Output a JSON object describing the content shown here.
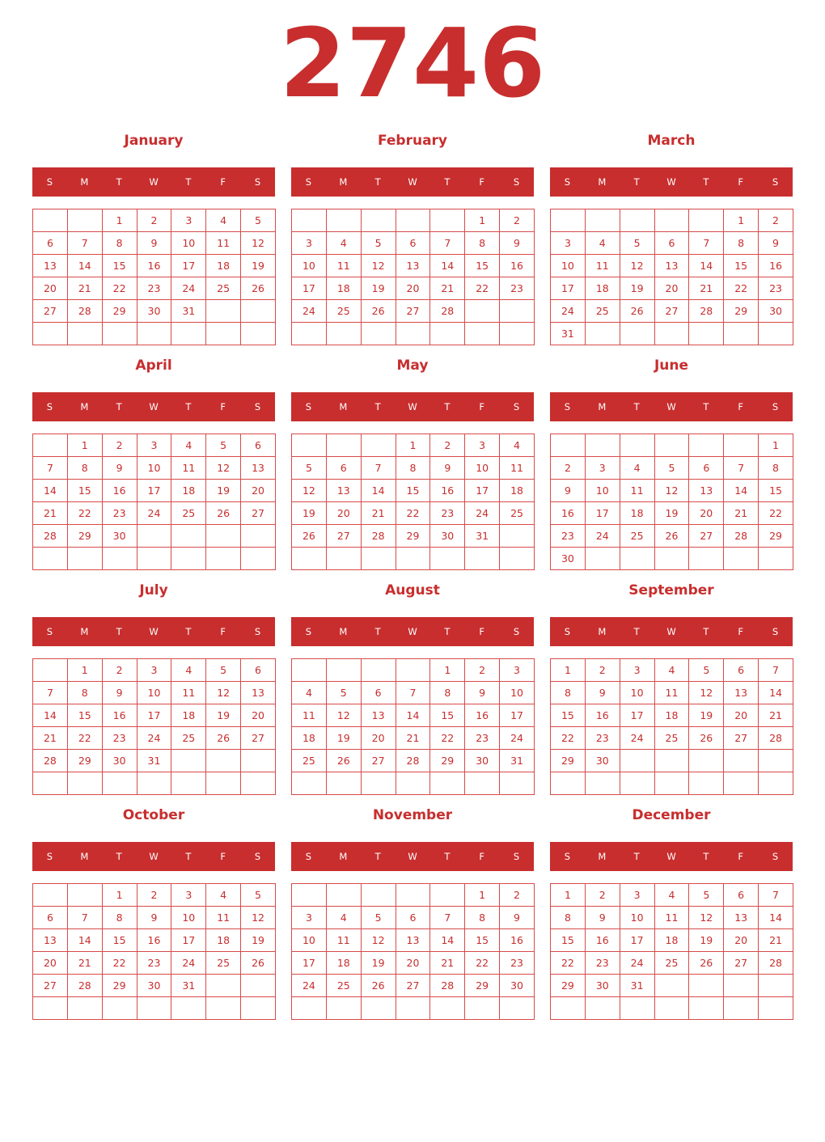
{
  "year": "2746",
  "accent_color": "#c82e2e",
  "weekday_labels": [
    "S",
    "M",
    "T",
    "W",
    "T",
    "F",
    "S"
  ],
  "months": [
    {
      "name": "January",
      "weeks": [
        [
          "",
          "",
          "1",
          "2",
          "3",
          "4",
          "5"
        ],
        [
          "6",
          "7",
          "8",
          "9",
          "10",
          "11",
          "12"
        ],
        [
          "13",
          "14",
          "15",
          "16",
          "17",
          "18",
          "19"
        ],
        [
          "20",
          "21",
          "22",
          "23",
          "24",
          "25",
          "26"
        ],
        [
          "27",
          "28",
          "29",
          "30",
          "31",
          "",
          ""
        ],
        [
          "",
          "",
          "",
          "",
          "",
          "",
          ""
        ]
      ]
    },
    {
      "name": "February",
      "weeks": [
        [
          "",
          "",
          "",
          "",
          "",
          "1",
          "2"
        ],
        [
          "3",
          "4",
          "5",
          "6",
          "7",
          "8",
          "9"
        ],
        [
          "10",
          "11",
          "12",
          "13",
          "14",
          "15",
          "16"
        ],
        [
          "17",
          "18",
          "19",
          "20",
          "21",
          "22",
          "23"
        ],
        [
          "24",
          "25",
          "26",
          "27",
          "28",
          "",
          ""
        ],
        [
          "",
          "",
          "",
          "",
          "",
          "",
          ""
        ]
      ]
    },
    {
      "name": "March",
      "weeks": [
        [
          "",
          "",
          "",
          "",
          "",
          "1",
          "2"
        ],
        [
          "3",
          "4",
          "5",
          "6",
          "7",
          "8",
          "9"
        ],
        [
          "10",
          "11",
          "12",
          "13",
          "14",
          "15",
          "16"
        ],
        [
          "17",
          "18",
          "19",
          "20",
          "21",
          "22",
          "23"
        ],
        [
          "24",
          "25",
          "26",
          "27",
          "28",
          "29",
          "30"
        ],
        [
          "31",
          "",
          "",
          "",
          "",
          "",
          ""
        ]
      ]
    },
    {
      "name": "April",
      "weeks": [
        [
          "",
          "1",
          "2",
          "3",
          "4",
          "5",
          "6"
        ],
        [
          "7",
          "8",
          "9",
          "10",
          "11",
          "12",
          "13"
        ],
        [
          "14",
          "15",
          "16",
          "17",
          "18",
          "19",
          "20"
        ],
        [
          "21",
          "22",
          "23",
          "24",
          "25",
          "26",
          "27"
        ],
        [
          "28",
          "29",
          "30",
          "",
          "",
          "",
          ""
        ],
        [
          "",
          "",
          "",
          "",
          "",
          "",
          ""
        ]
      ]
    },
    {
      "name": "May",
      "weeks": [
        [
          "",
          "",
          "",
          "1",
          "2",
          "3",
          "4"
        ],
        [
          "5",
          "6",
          "7",
          "8",
          "9",
          "10",
          "11"
        ],
        [
          "12",
          "13",
          "14",
          "15",
          "16",
          "17",
          "18"
        ],
        [
          "19",
          "20",
          "21",
          "22",
          "23",
          "24",
          "25"
        ],
        [
          "26",
          "27",
          "28",
          "29",
          "30",
          "31",
          ""
        ],
        [
          "",
          "",
          "",
          "",
          "",
          "",
          ""
        ]
      ]
    },
    {
      "name": "June",
      "weeks": [
        [
          "",
          "",
          "",
          "",
          "",
          "",
          "1"
        ],
        [
          "2",
          "3",
          "4",
          "5",
          "6",
          "7",
          "8"
        ],
        [
          "9",
          "10",
          "11",
          "12",
          "13",
          "14",
          "15"
        ],
        [
          "16",
          "17",
          "18",
          "19",
          "20",
          "21",
          "22"
        ],
        [
          "23",
          "24",
          "25",
          "26",
          "27",
          "28",
          "29"
        ],
        [
          "30",
          "",
          "",
          "",
          "",
          "",
          ""
        ]
      ]
    },
    {
      "name": "July",
      "weeks": [
        [
          "",
          "1",
          "2",
          "3",
          "4",
          "5",
          "6"
        ],
        [
          "7",
          "8",
          "9",
          "10",
          "11",
          "12",
          "13"
        ],
        [
          "14",
          "15",
          "16",
          "17",
          "18",
          "19",
          "20"
        ],
        [
          "21",
          "22",
          "23",
          "24",
          "25",
          "26",
          "27"
        ],
        [
          "28",
          "29",
          "30",
          "31",
          "",
          "",
          ""
        ],
        [
          "",
          "",
          "",
          "",
          "",
          "",
          ""
        ]
      ]
    },
    {
      "name": "August",
      "weeks": [
        [
          "",
          "",
          "",
          "",
          "1",
          "2",
          "3"
        ],
        [
          "4",
          "5",
          "6",
          "7",
          "8",
          "9",
          "10"
        ],
        [
          "11",
          "12",
          "13",
          "14",
          "15",
          "16",
          "17"
        ],
        [
          "18",
          "19",
          "20",
          "21",
          "22",
          "23",
          "24"
        ],
        [
          "25",
          "26",
          "27",
          "28",
          "29",
          "30",
          "31"
        ],
        [
          "",
          "",
          "",
          "",
          "",
          "",
          ""
        ]
      ]
    },
    {
      "name": "September",
      "weeks": [
        [
          "1",
          "2",
          "3",
          "4",
          "5",
          "6",
          "7"
        ],
        [
          "8",
          "9",
          "10",
          "11",
          "12",
          "13",
          "14"
        ],
        [
          "15",
          "16",
          "17",
          "18",
          "19",
          "20",
          "21"
        ],
        [
          "22",
          "23",
          "24",
          "25",
          "26",
          "27",
          "28"
        ],
        [
          "29",
          "30",
          "",
          "",
          "",
          "",
          ""
        ],
        [
          "",
          "",
          "",
          "",
          "",
          "",
          ""
        ]
      ]
    },
    {
      "name": "October",
      "weeks": [
        [
          "",
          "",
          "1",
          "2",
          "3",
          "4",
          "5"
        ],
        [
          "6",
          "7",
          "8",
          "9",
          "10",
          "11",
          "12"
        ],
        [
          "13",
          "14",
          "15",
          "16",
          "17",
          "18",
          "19"
        ],
        [
          "20",
          "21",
          "22",
          "23",
          "24",
          "25",
          "26"
        ],
        [
          "27",
          "28",
          "29",
          "30",
          "31",
          "",
          ""
        ],
        [
          "",
          "",
          "",
          "",
          "",
          "",
          ""
        ]
      ]
    },
    {
      "name": "November",
      "weeks": [
        [
          "",
          "",
          "",
          "",
          "",
          "1",
          "2"
        ],
        [
          "3",
          "4",
          "5",
          "6",
          "7",
          "8",
          "9"
        ],
        [
          "10",
          "11",
          "12",
          "13",
          "14",
          "15",
          "16"
        ],
        [
          "17",
          "18",
          "19",
          "20",
          "21",
          "22",
          "23"
        ],
        [
          "24",
          "25",
          "26",
          "27",
          "28",
          "29",
          "30"
        ],
        [
          "",
          "",
          "",
          "",
          "",
          "",
          ""
        ]
      ]
    },
    {
      "name": "December",
      "weeks": [
        [
          "1",
          "2",
          "3",
          "4",
          "5",
          "6",
          "7"
        ],
        [
          "8",
          "9",
          "10",
          "11",
          "12",
          "13",
          "14"
        ],
        [
          "15",
          "16",
          "17",
          "18",
          "19",
          "20",
          "21"
        ],
        [
          "22",
          "23",
          "24",
          "25",
          "26",
          "27",
          "28"
        ],
        [
          "29",
          "30",
          "31",
          "",
          "",
          "",
          ""
        ],
        [
          "",
          "",
          "",
          "",
          "",
          "",
          ""
        ]
      ]
    }
  ]
}
